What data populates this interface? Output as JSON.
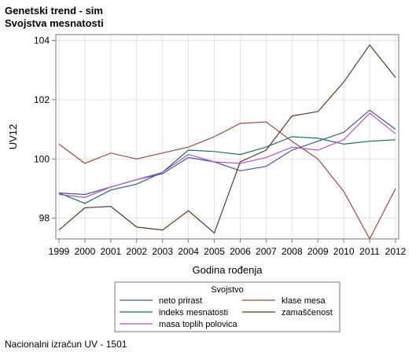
{
  "header": {
    "title_line1": "Genetski trend - sim",
    "title_line2": "Svojstva mesnatosti"
  },
  "footer": {
    "note": "Nacionalni izračun UV - 1501"
  },
  "chart_data": {
    "type": "line",
    "xlabel": "Godina rođenja",
    "ylabel": "UV12",
    "ylim": [
      97.3,
      104.2
    ],
    "yticks": [
      98,
      100,
      102,
      104
    ],
    "x": [
      1999,
      2000,
      2001,
      2002,
      2003,
      2004,
      2005,
      2006,
      2007,
      2008,
      2009,
      2010,
      2011,
      2012
    ],
    "grid": true,
    "legend": {
      "title": "Svojstvo",
      "placement": "bottom"
    },
    "series": [
      {
        "name": "neto prirast",
        "color": "#3b5b92",
        "values": [
          98.85,
          98.8,
          99.05,
          99.3,
          99.5,
          100.05,
          99.9,
          99.6,
          99.75,
          100.3,
          100.6,
          100.9,
          101.65,
          101.0
        ]
      },
      {
        "name": "klase mesa",
        "color": "#a0473b",
        "values": [
          100.5,
          99.85,
          100.2,
          100.0,
          100.2,
          100.4,
          100.75,
          101.2,
          101.25,
          100.6,
          100.0,
          98.9,
          97.3,
          99.0
        ]
      },
      {
        "name": "indeks mesnatosti",
        "color": "#1f6b68",
        "values": [
          98.85,
          98.5,
          98.95,
          99.15,
          99.55,
          100.3,
          100.25,
          100.15,
          100.4,
          100.75,
          100.7,
          100.5,
          100.6,
          100.65
        ]
      },
      {
        "name": "zamaščenost",
        "color": "#5c3a1e",
        "values": [
          97.6,
          98.35,
          98.4,
          97.7,
          97.6,
          98.25,
          97.5,
          99.9,
          100.3,
          101.45,
          101.6,
          102.6,
          103.85,
          102.75
        ]
      },
      {
        "name": "masa toplih polovica",
        "color": "#b24fd6",
        "values": [
          98.8,
          98.7,
          99.05,
          99.3,
          99.55,
          100.15,
          99.9,
          99.85,
          100.05,
          100.4,
          100.3,
          100.65,
          101.55,
          100.85
        ]
      }
    ]
  }
}
